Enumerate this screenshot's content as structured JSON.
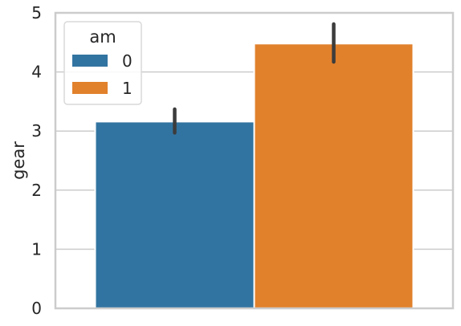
{
  "chart_data": {
    "type": "bar",
    "title": "",
    "xlabel": "",
    "ylabel": "gear",
    "categories": [
      ""
    ],
    "ylim": [
      0,
      5
    ],
    "yticks": [
      0,
      1,
      2,
      3,
      4,
      5
    ],
    "grid": true,
    "legend": {
      "title": "am",
      "placement": "top-left"
    },
    "series": [
      {
        "name": "0",
        "color": "#3274a1",
        "values": [
          3.16
        ],
        "ci": [
          [
            2.97,
            3.37
          ]
        ]
      },
      {
        "name": "1",
        "color": "#e1812c",
        "values": [
          4.48
        ],
        "ci": [
          [
            4.17,
            4.81
          ]
        ]
      }
    ]
  }
}
